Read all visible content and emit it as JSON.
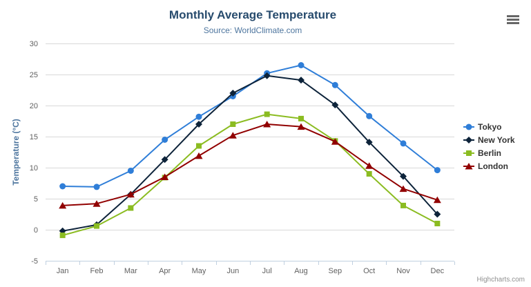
{
  "chart_data": {
    "type": "line",
    "title": "Monthly Average Temperature",
    "subtitle": "Source: WorldClimate.com",
    "xlabel": "",
    "ylabel": "Temperature (°C)",
    "categories": [
      "Jan",
      "Feb",
      "Mar",
      "Apr",
      "May",
      "Jun",
      "Jul",
      "Aug",
      "Sep",
      "Oct",
      "Nov",
      "Dec"
    ],
    "ylim": [
      -5,
      30
    ],
    "yticks": [
      -5,
      0,
      5,
      10,
      15,
      20,
      25,
      30
    ],
    "grid": "horizontal",
    "legend_position": "right",
    "series": [
      {
        "name": "Tokyo",
        "color": "#2f7ed8",
        "marker": "circle",
        "values": [
          7.0,
          6.9,
          9.5,
          14.5,
          18.2,
          21.5,
          25.2,
          26.5,
          23.3,
          18.3,
          13.9,
          9.6
        ]
      },
      {
        "name": "New York",
        "color": "#0d233a",
        "marker": "diamond",
        "values": [
          -0.2,
          0.8,
          5.7,
          11.3,
          17.0,
          22.0,
          24.8,
          24.1,
          20.1,
          14.1,
          8.6,
          2.5
        ]
      },
      {
        "name": "Berlin",
        "color": "#8bbc21",
        "marker": "square",
        "values": [
          -0.9,
          0.6,
          3.5,
          8.4,
          13.5,
          17.0,
          18.6,
          17.9,
          14.3,
          9.0,
          3.9,
          1.0
        ]
      },
      {
        "name": "London",
        "color": "#910000",
        "marker": "triangle",
        "values": [
          3.9,
          4.2,
          5.7,
          8.5,
          11.9,
          15.2,
          17.0,
          16.6,
          14.2,
          10.3,
          6.6,
          4.8
        ]
      }
    ]
  },
  "colors": {
    "title": "#274b6d",
    "subtitle": "#4d759e",
    "axis_labels": "#606060",
    "axis_title": "#4d759e",
    "grid": "#d8d8d8",
    "axis_line": "#c0d0e0",
    "legend_text": "#333333",
    "credit": "#909090",
    "export_icon": "#666666"
  },
  "export_menu": {
    "icon": "hamburger-icon"
  },
  "credit": {
    "label": "Highcharts.com"
  }
}
